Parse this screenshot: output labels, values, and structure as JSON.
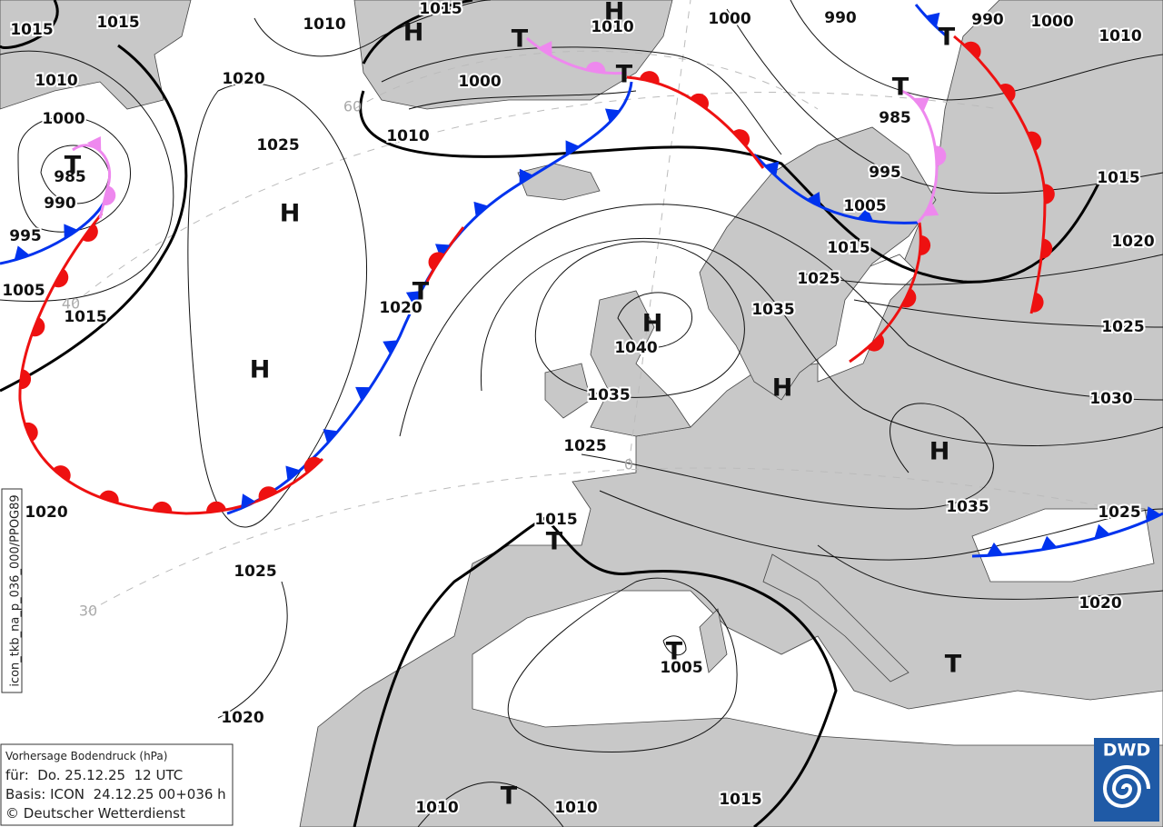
{
  "isobar_labels": [
    "1015",
    "1015",
    "1010",
    "1015",
    "1010",
    "1000",
    "990",
    "990",
    "1000",
    "1010",
    "1010",
    "1020",
    "1000",
    "1000",
    "1010",
    "985",
    "1025",
    "985",
    "995",
    "990",
    "1005",
    "1015",
    "995",
    "1015",
    "1020",
    "1025",
    "1005",
    "1015",
    "1020",
    "1035",
    "1025",
    "1040",
    "1035",
    "1030",
    "1025",
    "1035",
    "1020",
    "1015",
    "1025",
    "1025",
    "1020",
    "1005",
    "1020",
    "1010",
    "1010",
    "1015"
  ],
  "pressure_centers": [
    "H",
    "H",
    "H",
    "H",
    "H",
    "H",
    "H",
    "T",
    "T",
    "T",
    "T",
    "T",
    "T",
    "T",
    "T",
    "T",
    "T"
  ],
  "latitude_labels": [
    "60",
    "40",
    "30",
    "0"
  ],
  "legend": {
    "title": "Vorhersage Bodendruck (hPa)",
    "valid": "für:  Do. 25.12.25  12 UTC",
    "base": "Basis: ICON  24.12.25 00+036 h",
    "copyright": "© Deutscher Wetterdienst"
  },
  "product_id": "icon_tkb_na_p_036_000/PPOG89",
  "logo": "DWD"
}
